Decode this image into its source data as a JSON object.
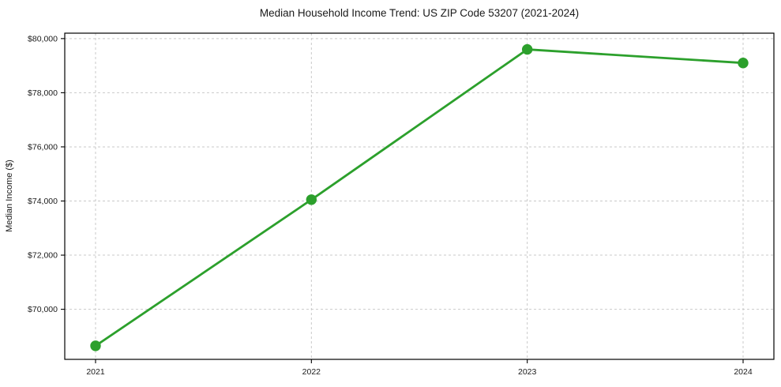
{
  "chart_data": {
    "type": "line",
    "title": "Median Household Income Trend: US ZIP Code 53207 (2021-2024)",
    "xlabel": "",
    "ylabel": "Median Income ($)",
    "categories": [
      "2021",
      "2022",
      "2023",
      "2024"
    ],
    "series": [
      {
        "name": "Median Household Income",
        "values": [
          68650,
          74050,
          79600,
          79100
        ],
        "color": "#2ca02c",
        "marker": "circle",
        "line_width": 2.8,
        "marker_radius": 6.7
      }
    ],
    "ylim": [
      68150,
      80200
    ],
    "yticks": [
      70000,
      72000,
      74000,
      76000,
      78000,
      80000
    ],
    "ytick_labels": [
      "$70,000",
      "$72,000",
      "$74,000",
      "$76,000",
      "$78,000",
      "$80,000"
    ],
    "grid": true,
    "grid_style": "dashed",
    "legend_position": "none"
  },
  "colors": {
    "line": "#2ca02c",
    "grid": "#c9c9c9",
    "spine": "#000000",
    "text": "#1a1a1a",
    "background": "#ffffff"
  }
}
